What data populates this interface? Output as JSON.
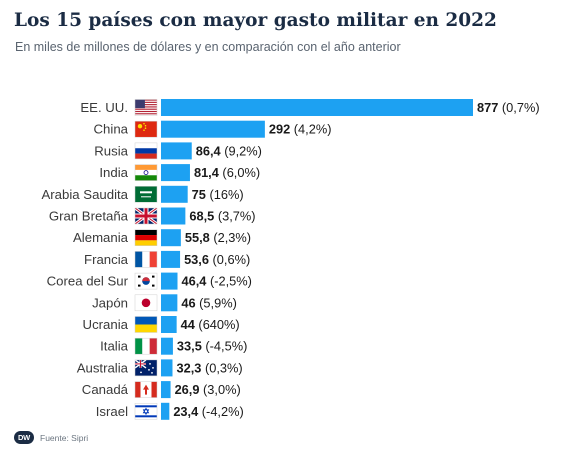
{
  "header": {
    "title": "Los 15 países con mayor gasto militar en 2022",
    "subtitle": "En miles de millones de dólares y en comparación con el año anterior"
  },
  "footer": {
    "logo_text": "DW",
    "source": "Fuente: Sipri"
  },
  "colors": {
    "bar": "#1da1f2",
    "title": "#1b2c44"
  },
  "chart_data": {
    "type": "bar",
    "orientation": "horizontal",
    "title": "Los 15 países con mayor gasto militar en 2022",
    "subtitle": "En miles de millones de dólares y en comparación con el año anterior",
    "grid": false,
    "legend": "none",
    "xlim": [
      0,
      877
    ],
    "categories": [
      "EE. UU.",
      "China",
      "Rusia",
      "India",
      "Arabia Saudita",
      "Gran Bretaña",
      "Alemania",
      "Francia",
      "Corea del Sur",
      "Japón",
      "Ucrania",
      "Italia",
      "Australia",
      "Canadá",
      "Israel"
    ],
    "values": [
      877,
      292,
      86.4,
      81.4,
      75,
      68.5,
      55.8,
      53.6,
      46.4,
      46,
      44,
      33.5,
      32.3,
      26.9,
      23.4
    ],
    "value_labels": [
      "877",
      "292",
      "86,4",
      "81,4",
      "75",
      "68,5",
      "55,8",
      "53,6",
      "46,4",
      "46",
      "44",
      "33,5",
      "32,3",
      "26,9",
      "23,4"
    ],
    "change_labels": [
      "(0,7%)",
      "(4,2%)",
      "(9,2%)",
      "(6,0%)",
      "(16%)",
      "(3,7%)",
      "(2,3%)",
      "(0,6%)",
      "(-2,5%)",
      "(5,9%)",
      "(640%)",
      "(-4,5%)",
      "(0,3%)",
      "(3,0%)",
      "(-4,2%)"
    ],
    "flags": [
      "flag-usa-icon",
      "flag-china-icon",
      "flag-russia-icon",
      "flag-india-icon",
      "flag-saudi-arabia-icon",
      "flag-uk-icon",
      "flag-germany-icon",
      "flag-france-icon",
      "flag-south-korea-icon",
      "flag-japan-icon",
      "flag-ukraine-icon",
      "flag-italy-icon",
      "flag-australia-icon",
      "flag-canada-icon",
      "flag-israel-icon"
    ]
  }
}
